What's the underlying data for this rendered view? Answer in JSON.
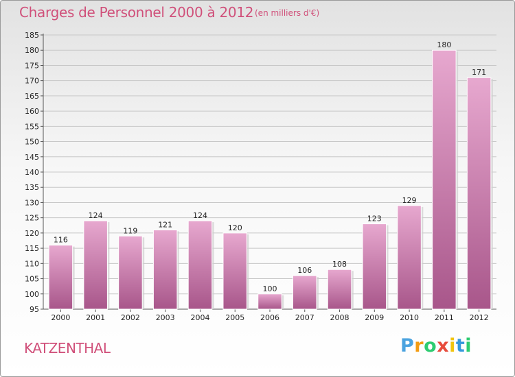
{
  "title": "Charges de Personnel 2000 à 2012",
  "subtitle": "(en milliers d'€)",
  "commune": "KATZENTHAL",
  "logo": {
    "text": "Proxiti",
    "letters": [
      {
        "ch": "P",
        "color": "#4aa3df"
      },
      {
        "ch": "r",
        "color": "#f39c12"
      },
      {
        "ch": "o",
        "color": "#2ecc71"
      },
      {
        "ch": "x",
        "color": "#e74c3c"
      },
      {
        "ch": "i",
        "color": "#f1c40f"
      },
      {
        "ch": "t",
        "color": "#3498db"
      },
      {
        "ch": "i",
        "color": "#2ecc71"
      }
    ]
  },
  "colors": {
    "bar_light": "#e7a8cf",
    "bar_dark": "#a8568a",
    "text_accent": "#d0507a"
  },
  "chart_data": {
    "type": "bar",
    "title": "Charges de Personnel 2000 à 2012",
    "subtitle": "(en milliers d'€)",
    "xlabel": "",
    "ylabel": "",
    "categories": [
      "2000",
      "2001",
      "2002",
      "2003",
      "2004",
      "2005",
      "2006",
      "2007",
      "2008",
      "2009",
      "2010",
      "2011",
      "2012"
    ],
    "values": [
      116,
      124,
      119,
      121,
      124,
      120,
      100,
      106,
      108,
      123,
      129,
      180,
      171
    ],
    "ylim": [
      95,
      185
    ],
    "yticks": [
      95,
      100,
      105,
      110,
      115,
      120,
      125,
      130,
      135,
      140,
      145,
      150,
      155,
      160,
      165,
      170,
      175,
      180,
      185
    ],
    "grid": true
  }
}
